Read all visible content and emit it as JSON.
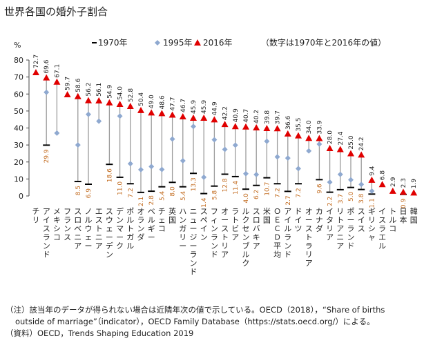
{
  "chart_data": {
    "type": "scatter",
    "title": "世界各国の婚外子割合",
    "ylabel": "%",
    "ylim": [
      0,
      80
    ],
    "yticks": [
      0,
      10,
      20,
      30,
      40,
      50,
      60,
      70,
      80
    ],
    "grid": false,
    "legend_placement": "top",
    "legend_note": "（数字は1970年と2016年の値）",
    "categories": [
      "チリ",
      "アイスランド",
      "メキシコ",
      "フランス",
      "スロベニア",
      "ノルウェー",
      "エストニア",
      "スウェーデン",
      "デンマーク",
      "ポルトガル",
      "オランダ",
      "ベルギー",
      "チェコ",
      "英国",
      "ハンガリー",
      "ニュージーランド",
      "スペイン",
      "フィンランド",
      "オーストリア",
      "ラトビア",
      "ルクセンブルク",
      "スロバキア",
      "米国",
      "ＯＥＣＤ平均",
      "アイルランド",
      "ドイツ",
      "オーストラリア",
      "カナダ",
      "イタリア",
      "リトアニア",
      "ポーランド",
      "スイス",
      "ギリシャ",
      "イスラエル",
      "トルコ",
      "日本",
      "韓国"
    ],
    "series": [
      {
        "name": "1970年",
        "marker": "bar",
        "color": "#000000",
        "values": [
          null,
          29.9,
          null,
          null,
          8.5,
          6.9,
          null,
          18.6,
          11.0,
          7.2,
          2.1,
          2.8,
          5.4,
          8.0,
          5.4,
          13.3,
          1.4,
          5.8,
          12.8,
          11.4,
          4.0,
          6.2,
          10.7,
          7.2,
          2.7,
          7.2,
          null,
          9.6,
          2.2,
          3.7,
          5.0,
          3.8,
          1.1,
          null,
          null,
          0.9,
          null
        ]
      },
      {
        "name": "1995年",
        "marker": "diamond",
        "color": "#8fa9d0",
        "values": [
          null,
          61.0,
          37.0,
          null,
          30.0,
          48.0,
          44.0,
          null,
          47.0,
          19.0,
          15.5,
          17.3,
          15.6,
          33.5,
          20.7,
          40.9,
          11.0,
          33.1,
          27.4,
          29.9,
          13.1,
          12.6,
          32.2,
          23.0,
          22.3,
          16.1,
          26.5,
          30.5,
          8.1,
          12.7,
          9.5,
          6.8,
          2.9,
          null,
          null,
          null,
          null
        ]
      },
      {
        "name": "2016年",
        "marker": "triangle",
        "color": "#e00000",
        "values": [
          72.7,
          69.6,
          67.1,
          59.7,
          58.6,
          56.2,
          56.1,
          54.9,
          54.0,
          52.8,
          50.4,
          49.0,
          48.6,
          47.7,
          46.7,
          45.9,
          45.9,
          44.9,
          42.2,
          40.9,
          40.7,
          40.2,
          39.8,
          39.7,
          36.6,
          35.5,
          34.0,
          33.9,
          28.0,
          27.4,
          25.0,
          24.2,
          9.4,
          6.8,
          2.9,
          2.3,
          1.9
        ]
      }
    ]
  },
  "notes": {
    "line1": "（注）該当年のデータが得られない場合は近隣年次の値で示している。OECD（2018），“Share of births",
    "line2": "outside of marriage”（indicator），OECD Family Database（https://stats.oecd.org/）による。",
    "source": "（資料）OECD，Trends Shaping Education 2019"
  }
}
